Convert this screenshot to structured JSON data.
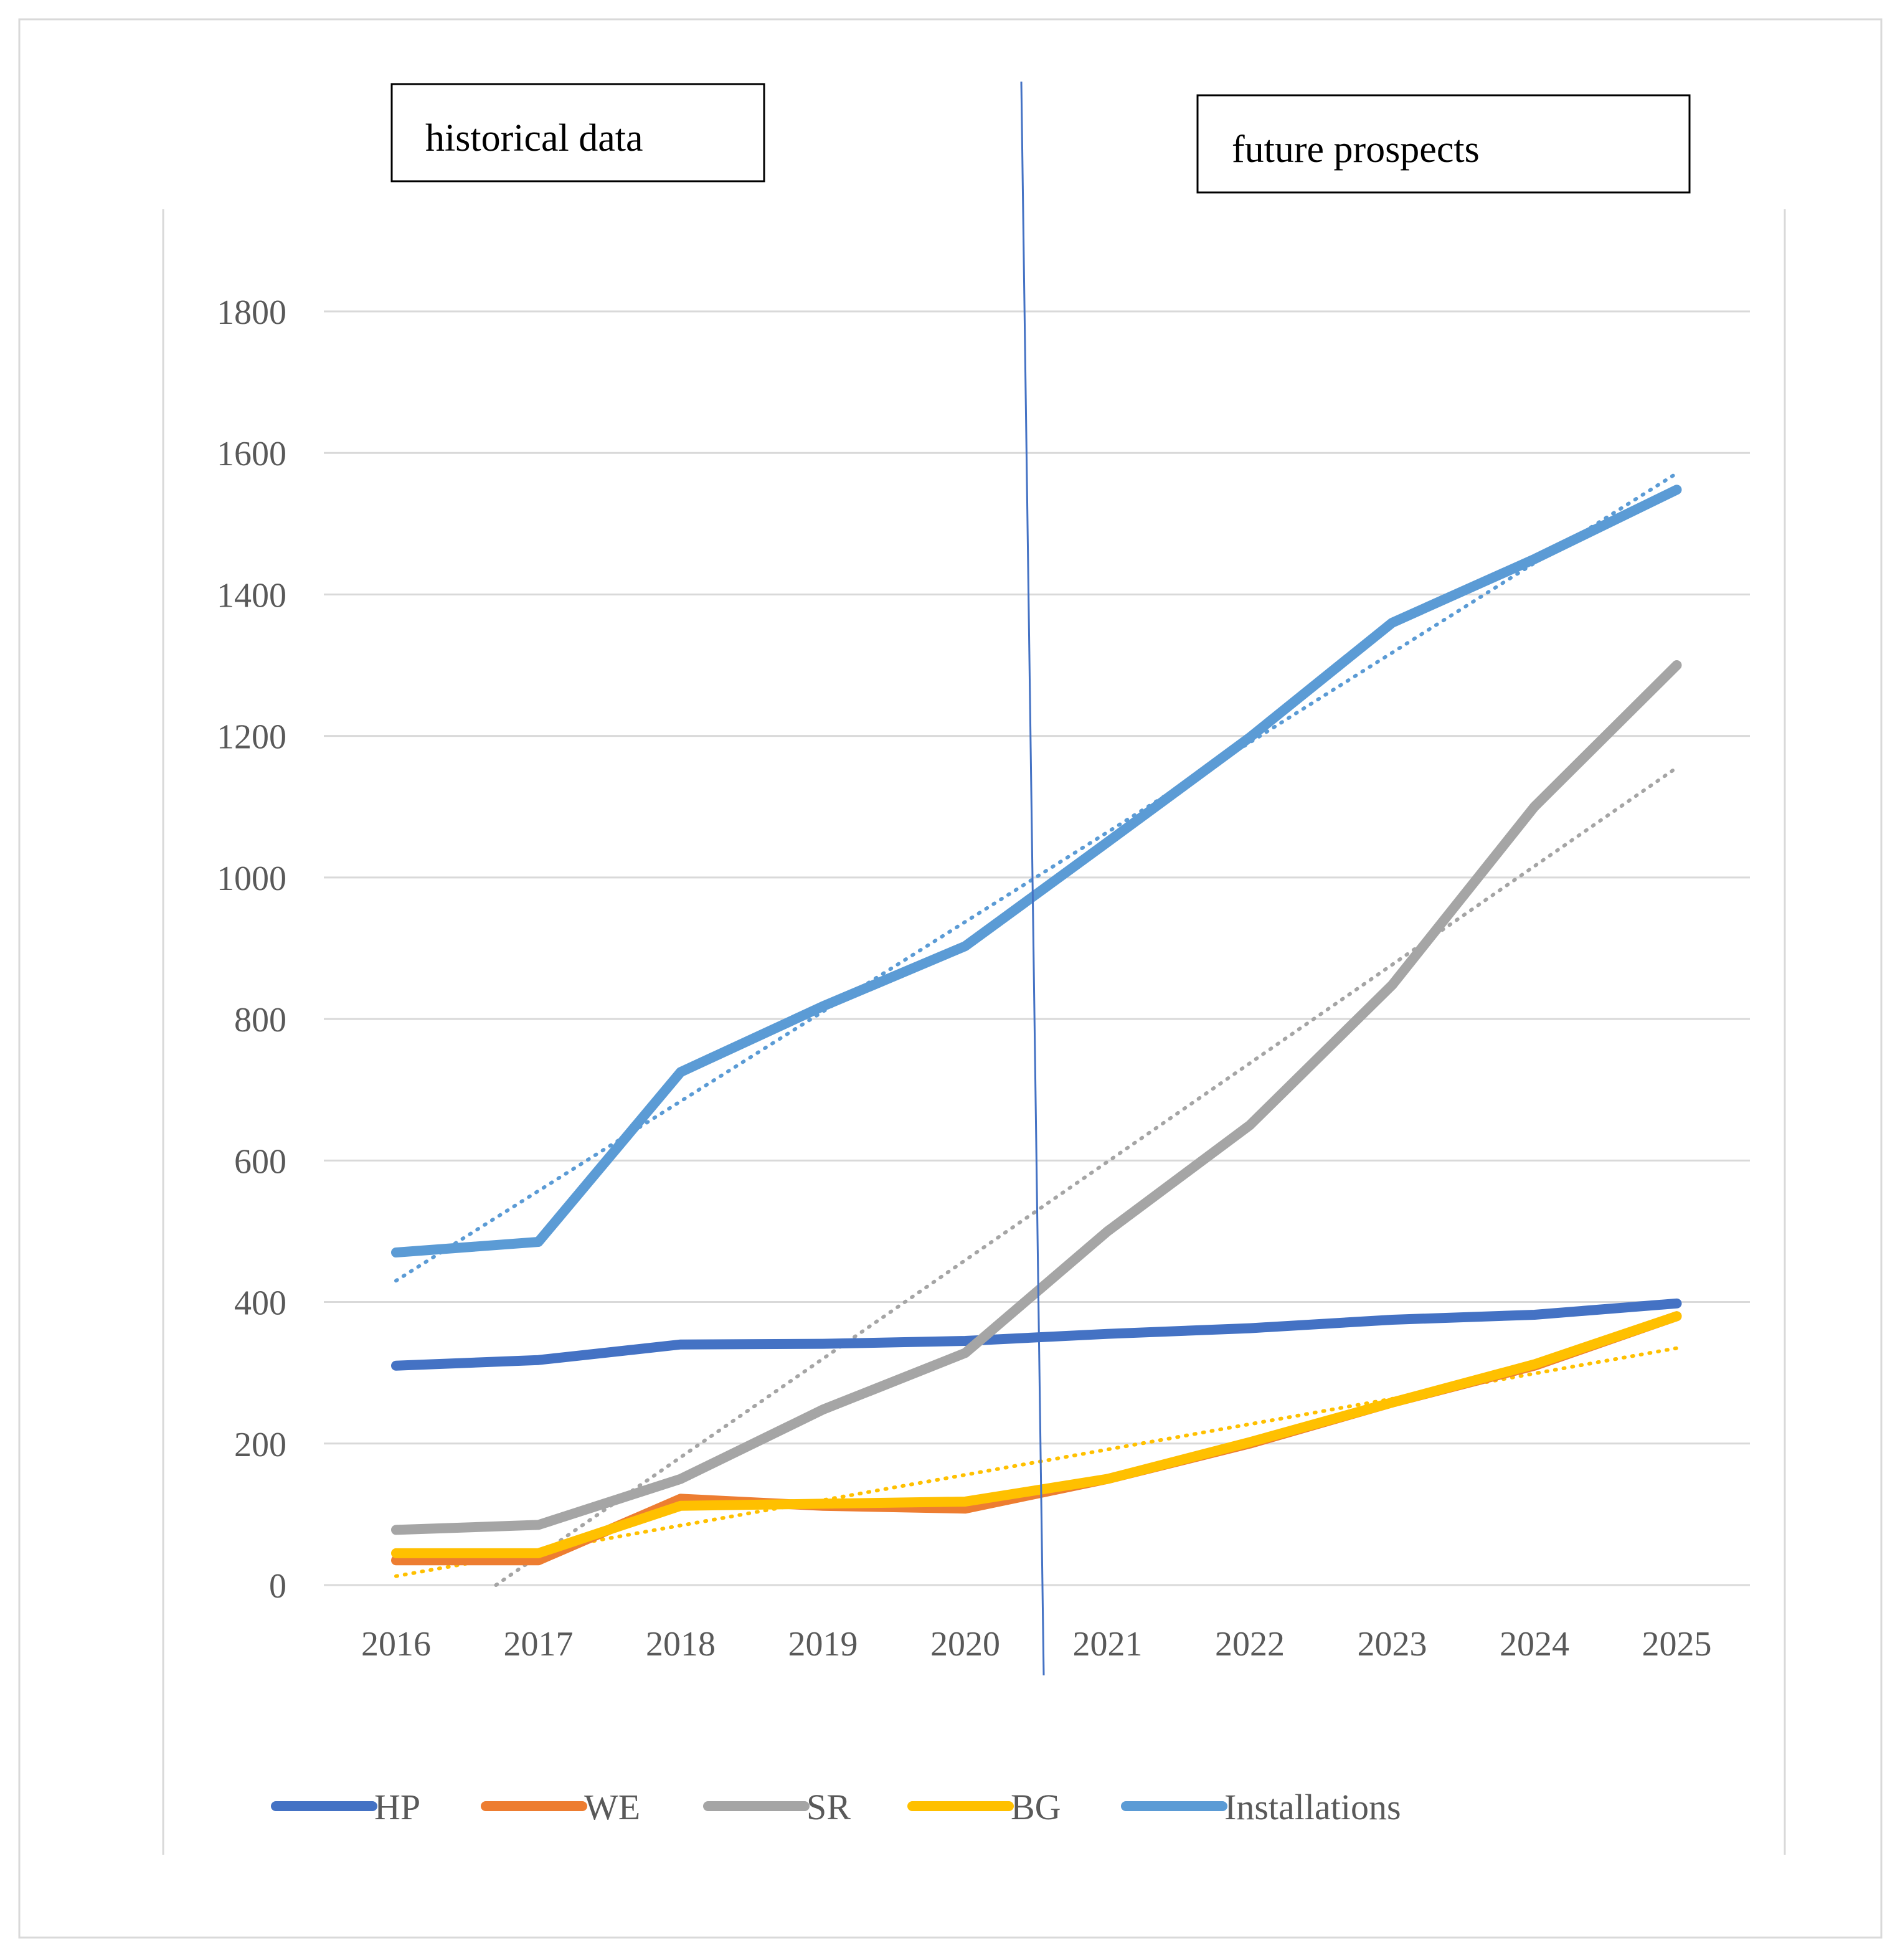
{
  "chart_data": {
    "type": "line",
    "title": "",
    "xlabel": "",
    "ylabel": "",
    "categories": [
      "2016",
      "2017",
      "2018",
      "2019",
      "2020",
      "2021",
      "2022",
      "2023",
      "2024",
      "2025"
    ],
    "ylim": [
      0,
      1800
    ],
    "yticks": [
      0,
      200,
      400,
      600,
      800,
      1000,
      1200,
      1400,
      1600,
      1800
    ],
    "grid": true,
    "legend_position": "bottom",
    "annotations": {
      "historical_label": "historical data",
      "future_label": "future prospects",
      "divider_between": [
        "2020",
        "2021"
      ]
    },
    "series": [
      {
        "name": "HP",
        "color": "#4472C4",
        "trendline": false,
        "values": [
          310,
          318,
          340,
          341,
          345,
          355,
          363,
          375,
          382,
          398
        ]
      },
      {
        "name": "WE",
        "color": "#ED7D31",
        "trendline": false,
        "values": [
          35,
          35,
          122,
          112,
          108,
          150,
          200,
          258,
          310,
          380
        ]
      },
      {
        "name": "SR",
        "color": "#A5A5A5",
        "trendline": true,
        "trend_color": "#A5A5A5",
        "values": [
          78,
          85,
          150,
          248,
          328,
          500,
          650,
          848,
          1100,
          1300
        ]
      },
      {
        "name": "BG",
        "color": "#FFC000",
        "trendline": true,
        "trend_color": "#FFC000",
        "values": [
          45,
          45,
          112,
          115,
          118,
          150,
          202,
          258,
          312,
          380
        ]
      },
      {
        "name": "Installations",
        "color": "#5B9BD5",
        "trendline": true,
        "trend_color": "#5B9BD5",
        "values": [
          470,
          485,
          725,
          818,
          903,
          1050,
          1198,
          1360,
          1450,
          1548
        ]
      }
    ]
  }
}
